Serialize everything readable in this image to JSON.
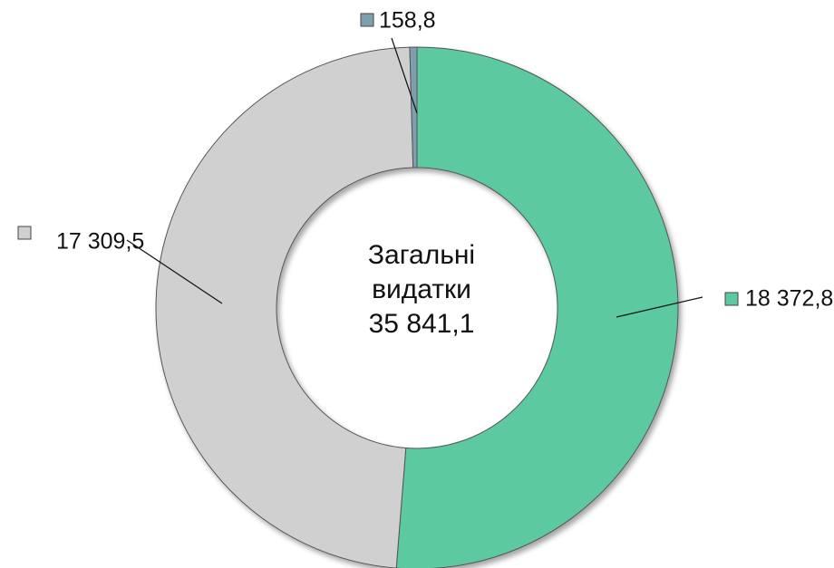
{
  "chart_data": {
    "type": "donut",
    "values": [
      18372.8,
      17309.5,
      158.8
    ],
    "value_labels": [
      "18 372,8",
      "17 309,5",
      "158,8"
    ],
    "colors": [
      "#5cc9a0",
      "#d0d0d0",
      "#7f9fae"
    ],
    "center_text": [
      "Загальні",
      "видатки",
      "35 841,1"
    ]
  }
}
